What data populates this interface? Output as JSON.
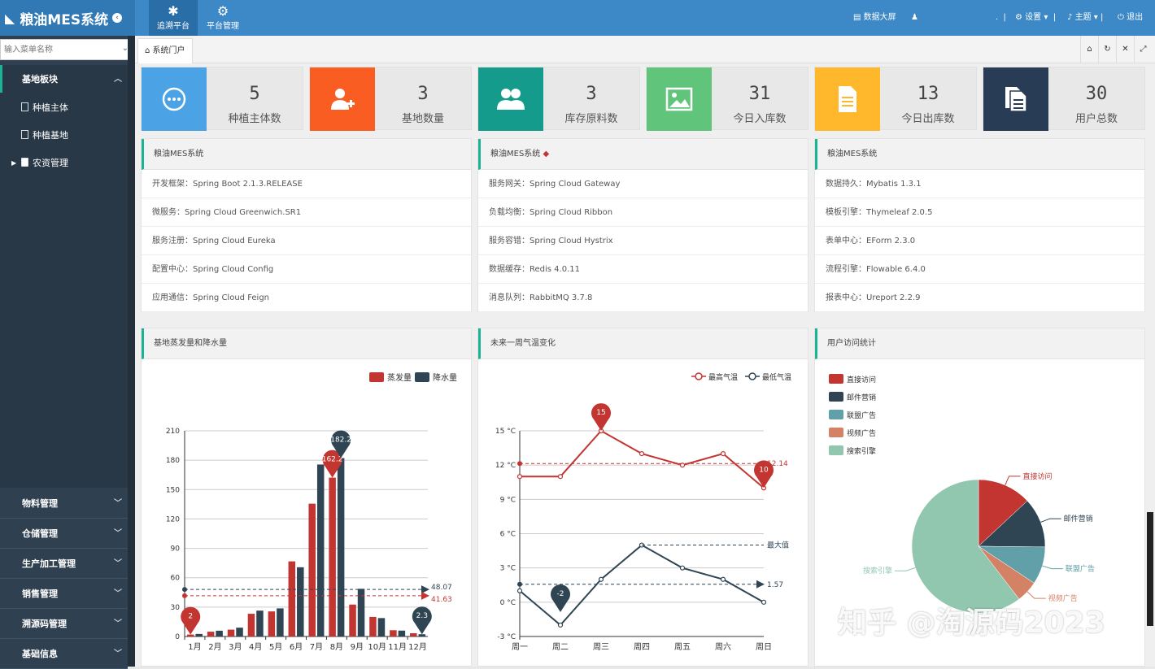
{
  "app": {
    "title": "粮油MES系统"
  },
  "header": {
    "nav": [
      {
        "label": "追溯平台",
        "icon": "bug-icon"
      },
      {
        "label": "平台管理",
        "icon": "gear-icon"
      }
    ],
    "right": {
      "screen": "数据大屏",
      "settings": "设置",
      "theme": "主题",
      "logout": "退出"
    }
  },
  "sidebar": {
    "search_placeholder": "输入菜单名称",
    "open_group": "基地板块",
    "open_items": [
      "种植主体",
      "种植基地",
      "农资管理"
    ],
    "groups": [
      "物料管理",
      "仓储管理",
      "生产加工管理",
      "销售管理",
      "溯源码管理",
      "基础信息"
    ]
  },
  "tabs": {
    "active": "系统门户"
  },
  "stats": [
    {
      "value": "5",
      "label": "种植主体数",
      "color": "#4ba3e5",
      "icon": "chat-icon"
    },
    {
      "value": "3",
      "label": "基地数量",
      "color": "#f95d22",
      "icon": "add-user-icon"
    },
    {
      "value": "3",
      "label": "库存原料数",
      "color": "#149b8b",
      "icon": "users-icon"
    },
    {
      "value": "31",
      "label": "今日入库数",
      "color": "#60c57a",
      "icon": "image-icon"
    },
    {
      "value": "13",
      "label": "今日出库数",
      "color": "#ffb72b",
      "icon": "document-icon"
    },
    {
      "value": "30",
      "label": "用户总数",
      "color": "#283c56",
      "icon": "copy-icon"
    }
  ],
  "info_panels": [
    {
      "title": "粮油MES系统",
      "rows": [
        "开发框架：Spring Boot 2.1.3.RELEASE",
        "微服务：Spring Cloud Greenwich.SR1",
        "服务注册：Spring Cloud Eureka",
        "配置中心：Spring Cloud Config",
        "应用通信：Spring Cloud Feign"
      ]
    },
    {
      "title": "粮油MES系统",
      "rows": [
        "服务网关：Spring Cloud Gateway",
        "负载均衡：Spring Cloud Ribbon",
        "服务容错：Spring Cloud Hystrix",
        "数据缓存：Redis 4.0.11",
        "消息队列：RabbitMQ 3.7.8"
      ]
    },
    {
      "title": "粮油MES系统",
      "rows": [
        "数据持久：Mybatis 1.3.1",
        "模板引擎：Thymeleaf 2.0.5",
        "表单中心：EForm 2.3.0",
        "流程引擎：Flowable 6.4.0",
        "报表中心：Ureport 2.2.9"
      ]
    }
  ],
  "chart_titles": [
    "基地蒸发量和降水量",
    "未来一周气温变化",
    "用户访问统计"
  ],
  "watermark": "知乎 @淘源码2023",
  "chart_data": [
    {
      "type": "bar",
      "title": "基地蒸发量和降水量",
      "categories": [
        "1月",
        "2月",
        "3月",
        "4月",
        "5月",
        "6月",
        "7月",
        "8月",
        "9月",
        "10月",
        "11月",
        "12月"
      ],
      "series": [
        {
          "name": "蒸发量",
          "color": "#c23531",
          "values": [
            2.0,
            4.9,
            7.0,
            23.2,
            25.6,
            76.7,
            135.6,
            162.2,
            32.6,
            20.0,
            6.4,
            3.3
          ]
        },
        {
          "name": "降水量",
          "color": "#2f4554",
          "values": [
            2.6,
            5.9,
            9.0,
            26.4,
            28.7,
            70.7,
            175.6,
            182.2,
            48.7,
            18.8,
            6.0,
            2.3
          ]
        }
      ],
      "mark_points": [
        {
          "label": "2"
        },
        {
          "label": "162.2"
        },
        {
          "label": "182.2"
        },
        {
          "label": "2.3"
        }
      ],
      "mark_lines": [
        {
          "value": 48.07,
          "label": "48.07"
        },
        {
          "value": 41.63,
          "label": "41.63"
        }
      ],
      "y_ticks": [
        "0",
        "30",
        "60",
        "90",
        "120",
        "150",
        "180",
        "210"
      ],
      "ylim": [
        0,
        210
      ],
      "legend": "top-right"
    },
    {
      "type": "line",
      "title": "未来一周气温变化",
      "categories": [
        "周一",
        "周二",
        "周三",
        "周四",
        "周五",
        "周六",
        "周日"
      ],
      "series": [
        {
          "name": "最高气温",
          "color": "#c23531",
          "values": [
            11,
            11,
            15,
            13,
            12,
            13,
            10
          ]
        },
        {
          "name": "最低气温",
          "color": "#2f4554",
          "values": [
            1,
            -2,
            2,
            5,
            3,
            2,
            0
          ]
        }
      ],
      "mark_points": [
        {
          "label": "15"
        },
        {
          "label": "10"
        },
        {
          "label": "-2"
        }
      ],
      "mark_lines": [
        {
          "value": 12.14,
          "label": "12.14"
        },
        {
          "value": 5,
          "label": "最大值"
        },
        {
          "value": 1.57,
          "label": "1.57"
        }
      ],
      "y_ticks": [
        "-3 °C",
        "0 °C",
        "3 °C",
        "6 °C",
        "9 °C",
        "12 °C",
        "15 °C"
      ],
      "ylim": [
        -3,
        15
      ],
      "legend": "top-right"
    },
    {
      "type": "pie",
      "title": "用户访问统计",
      "slices": [
        {
          "name": "直接访问",
          "value": 335,
          "color": "#c23531"
        },
        {
          "name": "邮件营销",
          "value": 310,
          "color": "#2f4554"
        },
        {
          "name": "联盟广告",
          "value": 234,
          "color": "#61a0a8"
        },
        {
          "name": "视频广告",
          "value": 135,
          "color": "#d48265"
        },
        {
          "name": "搜索引擎",
          "value": 1548,
          "color": "#91c7ae"
        }
      ],
      "legend": "top-left"
    }
  ]
}
